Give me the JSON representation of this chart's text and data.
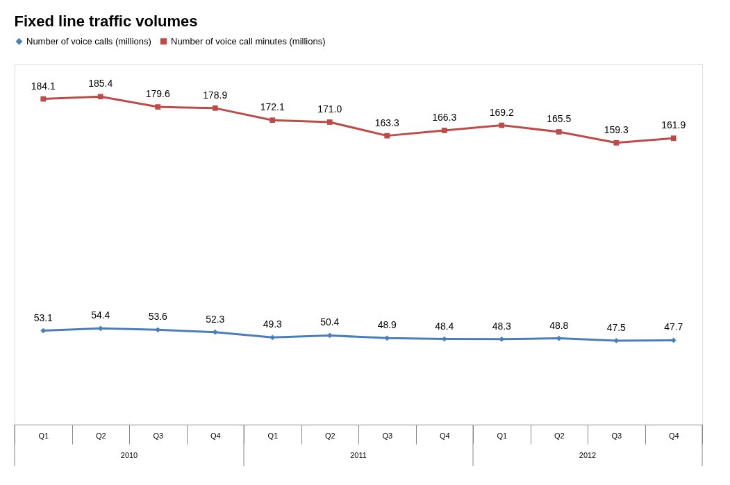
{
  "chart_data": {
    "type": "line",
    "title": "Fixed line traffic volumes",
    "categories": [
      "Q1",
      "Q2",
      "Q3",
      "Q4",
      "Q1",
      "Q2",
      "Q3",
      "Q4",
      "Q1",
      "Q2",
      "Q3",
      "Q4"
    ],
    "series": [
      {
        "name": "Number of voice calls (millions)",
        "color": "#4a7ebb",
        "marker": "diamond",
        "values": [
          53.1,
          54.4,
          53.6,
          52.3,
          49.3,
          50.4,
          48.9,
          48.4,
          48.3,
          48.8,
          47.5,
          47.7
        ],
        "value_labels": [
          "53.1",
          "54.4",
          "53.6",
          "52.3",
          "49.3",
          "50.4",
          "48.9",
          "48.4",
          "48.3",
          "48.8",
          "47.5",
          "47.7"
        ]
      },
      {
        "name": "Number of voice call minutes (millions)",
        "color": "#be4b48",
        "marker": "square",
        "values": [
          184.1,
          185.4,
          179.6,
          178.9,
          172.1,
          171.0,
          163.3,
          166.3,
          169.2,
          165.5,
          159.3,
          161.9
        ],
        "value_labels": [
          "184.1",
          "185.4",
          "179.6",
          "178.9",
          "172.1",
          "171.0",
          "163.3",
          "166.3",
          "169.2",
          "165.5",
          "159.3",
          "161.9"
        ]
      }
    ],
    "annotations": [
      "2010",
      "2011",
      "2012"
    ],
    "legend": "top left"
  }
}
